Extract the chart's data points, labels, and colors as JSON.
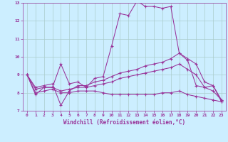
{
  "background_color": "#cceeff",
  "grid_color": "#aacccc",
  "line_color": "#993399",
  "xlim": [
    -0.5,
    23.5
  ],
  "ylim": [
    7,
    13
  ],
  "yticks": [
    7,
    8,
    9,
    10,
    11,
    12,
    13
  ],
  "xticks": [
    0,
    1,
    2,
    3,
    4,
    5,
    6,
    7,
    8,
    9,
    10,
    11,
    12,
    13,
    14,
    15,
    16,
    17,
    18,
    19,
    20,
    21,
    22,
    23
  ],
  "xlabel": "Windchill (Refroidissement éolien,°C)",
  "line1_y": [
    9.0,
    7.9,
    8.3,
    8.3,
    9.6,
    8.5,
    8.6,
    8.3,
    8.8,
    8.9,
    10.6,
    12.4,
    12.3,
    13.1,
    12.8,
    12.8,
    12.7,
    12.8,
    10.2,
    9.8,
    8.4,
    8.3,
    8.4,
    7.5
  ],
  "line2_y": [
    9.0,
    8.3,
    8.4,
    8.5,
    7.3,
    8.1,
    8.4,
    8.4,
    8.6,
    8.7,
    8.9,
    9.1,
    9.2,
    9.3,
    9.5,
    9.6,
    9.7,
    9.9,
    10.2,
    9.9,
    9.6,
    8.6,
    8.4,
    7.6
  ],
  "line3_y": [
    9.0,
    8.2,
    8.3,
    8.3,
    8.1,
    8.2,
    8.3,
    8.3,
    8.4,
    8.5,
    8.6,
    8.8,
    8.9,
    9.0,
    9.1,
    9.2,
    9.3,
    9.4,
    9.6,
    9.3,
    9.0,
    8.3,
    8.1,
    7.6
  ],
  "line4_y": [
    9.0,
    8.0,
    8.1,
    8.2,
    8.0,
    8.0,
    8.1,
    8.1,
    8.1,
    8.0,
    7.9,
    7.9,
    7.9,
    7.9,
    7.9,
    7.9,
    8.0,
    8.0,
    8.1,
    7.9,
    7.8,
    7.7,
    7.6,
    7.5
  ]
}
